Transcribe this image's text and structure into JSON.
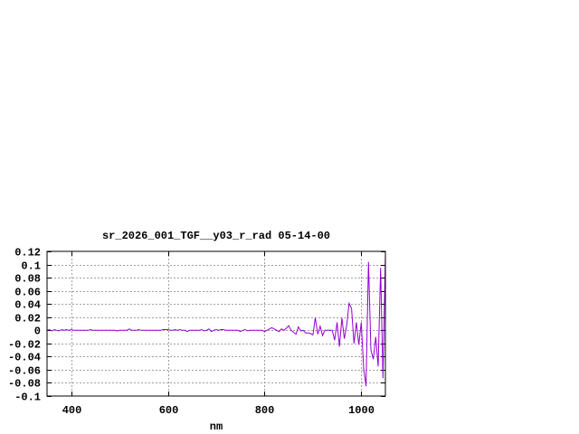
{
  "chart_data": {
    "type": "line",
    "title": "sr_2026_001_TGF__y03_r_rad 05-14-00",
    "xlabel": "nm",
    "ylabel": "",
    "xlim": [
      350,
      1050
    ],
    "ylim": [
      -0.1,
      0.12
    ],
    "grid": true,
    "x_ticks": [
      400,
      600,
      800,
      1000
    ],
    "x_tick_labels": [
      "400",
      "600",
      "800",
      "1000"
    ],
    "y_ticks": [
      0.12,
      0.1,
      0.08,
      0.06,
      0.04,
      0.02,
      0,
      -0.02,
      -0.04,
      -0.06,
      -0.08,
      -0.1
    ],
    "y_tick_labels": [
      "0.12",
      "0.1",
      "0.08",
      "0.06",
      "0.04",
      "0.02",
      "0",
      "-0.02",
      "-0.04",
      "-0.06",
      "-0.08",
      "-0.1"
    ],
    "series": [
      {
        "color": "#9400d3",
        "x_start": 350,
        "x_step": 5,
        "values": [
          0,
          0.001,
          -0.001,
          0.001,
          0,
          -0.001,
          0.001,
          0,
          0.001,
          0,
          0.001,
          0,
          0,
          0,
          0,
          0,
          0,
          0,
          0.001,
          0,
          0,
          0,
          0,
          0,
          0,
          0,
          0,
          0,
          0,
          -0.001,
          0,
          0,
          0,
          0,
          0.002,
          0,
          0,
          0,
          0.001,
          0,
          0,
          0,
          0,
          0,
          0,
          0,
          0,
          0,
          0.001,
          0.001,
          0.001,
          0,
          0,
          0.001,
          0,
          0.001,
          0,
          0,
          -0.002,
          0,
          0,
          0,
          0,
          0,
          0.001,
          -0.001,
          0,
          0.002,
          -0.002,
          0,
          0.001,
          0,
          0.001,
          0.001,
          0,
          0,
          0,
          0,
          0,
          0,
          -0.002,
          0,
          0.001,
          -0.001,
          0,
          0,
          0,
          0,
          0,
          0,
          -0.002,
          0,
          0.002,
          0.004,
          0.002,
          0,
          -0.002,
          0.002,
          0,
          0.003,
          0.007,
          0,
          -0.003,
          -0.006,
          0.005,
          -0.001,
          0,
          -0.004,
          -0.004,
          -0.005,
          -0.007,
          0.019,
          -0.006,
          0.006,
          -0.008,
          0,
          0,
          0,
          0,
          -0.015,
          0.012,
          -0.025,
          0.019,
          -0.013,
          0.008,
          0.041,
          0.033,
          -0.02,
          0.012,
          -0.022,
          0.012,
          -0.058,
          -0.085,
          0.104,
          -0.03,
          -0.044,
          -0.01,
          -0.055,
          0.095,
          -0.073,
          0.115
        ]
      }
    ]
  }
}
